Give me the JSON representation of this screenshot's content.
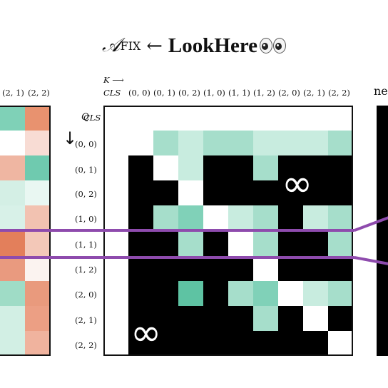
{
  "title": {
    "math": "𝒜",
    "subscript": "FIX",
    "arrow": "←",
    "bold": "LookHere"
  },
  "axis": {
    "k": "K ⟶",
    "cls": "CLS",
    "q": "Q",
    "q_arrow": "↓"
  },
  "top_labels": [
    "(0, 0)",
    "(0, 1)",
    "(0, 2)",
    "(1, 0)",
    "(1, 1)",
    "(1, 2)",
    "(2, 0)",
    "(2, 1)",
    "(2, 2)"
  ],
  "left_top_labels": [
    "(2, 1)",
    "(2, 2)"
  ],
  "row_labels": [
    "CLS",
    "(0, 0)",
    "(0, 1)",
    "(0, 2)",
    "(1, 0)",
    "(1, 1)",
    "(1, 2)",
    "(2, 0)",
    "(2, 1)",
    "(2, 2)"
  ],
  "infinity": "∞",
  "right_label": "ne",
  "colors": {
    "masked": "#000000",
    "empty": "#ffffff",
    "teal_1": "#c8ecdf",
    "teal_2": "#a6decb",
    "teal_3": "#80d1b8",
    "teal_4": "#5ec3a3",
    "highlight_line": "#8e4bad"
  },
  "matrix": [
    "0000000000",
    "0W21221112",
    "0BW1BB2BBB",
    "0BBWBBBBBB",
    "0B23W12B12",
    "0BB2BW2BB2",
    "0BBBBBWBBB",
    "0BB4B23W12",
    "0BBBBB2BWB",
    "0BBBBBBBBW"
  ],
  "left_matrix": [
    [
      "#7fd1b7",
      "#e8926f"
    ],
    [
      "#ffffff",
      "#f8dcd4"
    ],
    [
      "#efb6a2",
      "#6fcaaf"
    ],
    [
      "#d4efe5",
      "#e9f7f2"
    ],
    [
      "#d8f1e8",
      "#f2c2b1"
    ],
    [
      "#e37f5b",
      "#f3c8b8"
    ],
    [
      "#e99a7f",
      "#fbf3f0"
    ],
    [
      "#9fdcc6",
      "#e99a7d"
    ],
    [
      "#d2efe4",
      "#ec9f84"
    ],
    [
      "#d2efe4",
      "#f0b39e"
    ]
  ]
}
